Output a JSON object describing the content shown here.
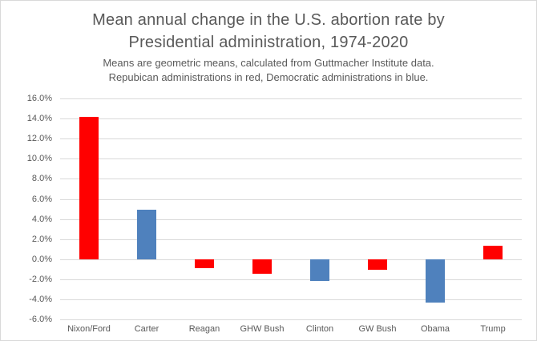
{
  "chart_data": {
    "type": "bar",
    "title": "Mean annual change in the U.S. abortion rate by Presidential administration, 1974-2020",
    "title_lines": [
      "Mean annual change in the U.S. abortion rate by",
      "Presidential administration, 1974-2020"
    ],
    "subtitle_lines": [
      "Means are geometric means, calculated from Guttmacher Institute data.",
      "Repubican administrations in red, Democratic administrations in blue."
    ],
    "categories": [
      "Nixon/Ford",
      "Carter",
      "Reagan",
      "GHW Bush",
      "Clinton",
      "GW Bush",
      "Obama",
      "Trump"
    ],
    "values": [
      14.2,
      4.9,
      -0.9,
      -1.5,
      -2.2,
      -1.1,
      -4.3,
      1.3
    ],
    "party": [
      "Republican",
      "Democratic",
      "Republican",
      "Republican",
      "Democratic",
      "Republican",
      "Democratic",
      "Republican"
    ],
    "bar_colors": [
      "#ff0000",
      "#4f81bd",
      "#ff0000",
      "#ff0000",
      "#4f81bd",
      "#ff0000",
      "#4f81bd",
      "#ff0000"
    ],
    "xlabel": "",
    "ylabel": "",
    "ylim": [
      -6,
      16
    ],
    "ytick_step": 2,
    "ytick_labels": [
      "16.0%",
      "14.0%",
      "12.0%",
      "10.0%",
      "8.0%",
      "6.0%",
      "4.0%",
      "2.0%",
      "0.0%",
      "-2.0%",
      "-4.0%",
      "-6.0%"
    ],
    "grid": true,
    "legend_position": "none",
    "colors": {
      "republican_red": "#ff0000",
      "democratic_blue": "#4f81bd",
      "gridline": "#d9d9d9",
      "axis_text": "#595959",
      "title_text": "#595959",
      "background": "#ffffff",
      "border": "#d9d9d9"
    }
  }
}
